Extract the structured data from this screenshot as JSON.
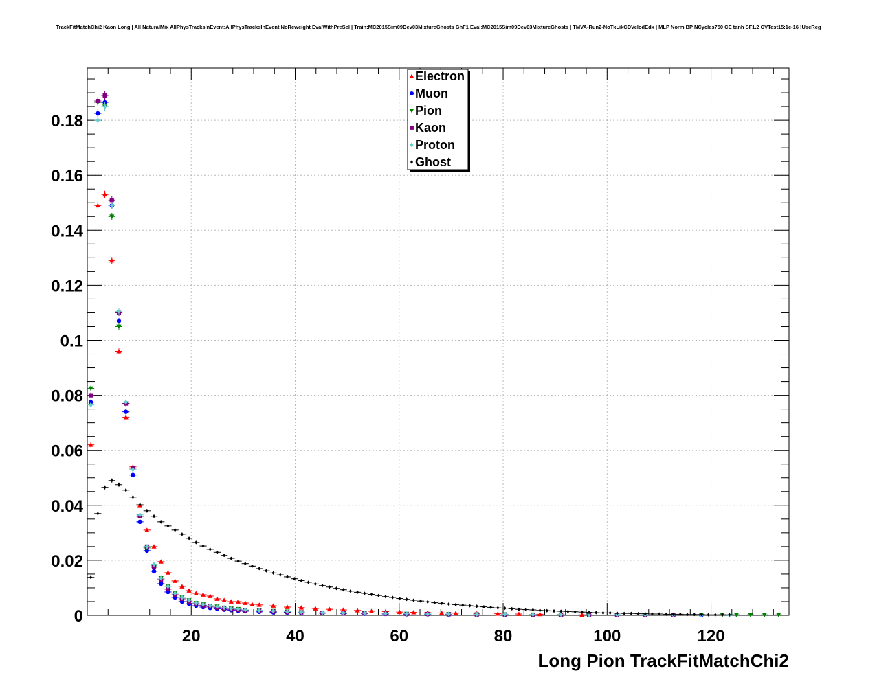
{
  "chart_data": {
    "type": "scatter",
    "title": "TrackFitMatchChi2 Kaon Long | All NaturalMix AllPhysTracksInEvent:AllPhysTracksInEvent NoReweight EvalWithPreSel | Train:MC2015Sim09Dev03MixtureGhosts GhF1 Eval:MC2015Sim09Dev03MixtureGhosts | TMVA-Run2-NoTkLikCDVelodEdx | MLP Norm BP NCycles750 CE tanh SF1.2 CVTest15:1e-16 !UseReg",
    "xlabel": "Long Pion TrackFitMatchChi2",
    "ylabel": "",
    "xlim": [
      0,
      135
    ],
    "ylim": [
      0,
      0.199
    ],
    "grid": true,
    "legend_position": "top-center",
    "xticks": [
      20,
      40,
      60,
      80,
      100,
      120
    ],
    "xtick_labels": [
      "20",
      "40",
      "60",
      "80",
      "100",
      "120"
    ],
    "yticks": [
      0,
      0.02,
      0.04,
      0.06,
      0.08,
      0.1,
      0.12,
      0.14,
      0.16,
      0.18
    ],
    "ytick_labels": [
      "0",
      "0.02",
      "0.04",
      "0.06",
      "0.08",
      "0.1",
      "0.12",
      "0.14",
      "0.16",
      "0.18"
    ],
    "bin_width": 1.35,
    "series": [
      {
        "name": "Electron",
        "color": "#ff0000",
        "marker": "triangle-up",
        "x": [
          0.68,
          2.03,
          3.38,
          4.73,
          6.08,
          7.43,
          8.78,
          10.13,
          11.48,
          12.83,
          14.18,
          15.53,
          16.88,
          18.23,
          19.58,
          20.93,
          22.28,
          23.63,
          24.98,
          26.33,
          27.68,
          29.03,
          30.38,
          31.73,
          33.08,
          35.78,
          38.48,
          41.18,
          43.88,
          46.58,
          49.28,
          51.98,
          54.68,
          57.38,
          60.08,
          62.78,
          65.48,
          68.18,
          70.88,
          74.93,
          78.98,
          83.03,
          87.08,
          91.13,
          95.18
        ],
        "y": [
          0.062,
          0.149,
          0.153,
          0.129,
          0.096,
          0.072,
          0.054,
          0.04,
          0.031,
          0.025,
          0.0195,
          0.0155,
          0.0125,
          0.0105,
          0.009,
          0.008,
          0.0075,
          0.007,
          0.006,
          0.0055,
          0.005,
          0.005,
          0.0045,
          0.004,
          0.0038,
          0.0035,
          0.003,
          0.0028,
          0.0025,
          0.0022,
          0.002,
          0.0018,
          0.0015,
          0.0014,
          0.0012,
          0.0011,
          0.001,
          0.0009,
          0.0008,
          0.0007,
          0.0006,
          0.0005,
          0.0004,
          0.0003,
          0.0002
        ]
      },
      {
        "name": "Muon",
        "color": "#0000ff",
        "marker": "circle",
        "x": [
          0.68,
          2.03,
          3.38,
          4.73,
          6.08,
          7.43,
          8.78,
          10.13,
          11.48,
          12.83,
          14.18,
          15.53,
          16.88,
          18.23,
          19.58,
          20.93,
          22.28,
          23.63,
          24.98,
          26.33,
          27.68,
          29.03,
          30.38,
          33.08,
          35.78,
          38.48,
          41.18,
          45.23,
          49.28,
          53.33,
          57.38,
          61.43,
          65.48,
          69.53,
          74.93,
          80.33,
          85.73,
          91.13,
          96.53,
          101.93,
          107.33,
          112.73,
          118.13
        ],
        "y": [
          0.0775,
          0.1825,
          0.1865,
          0.149,
          0.107,
          0.074,
          0.051,
          0.034,
          0.0235,
          0.016,
          0.0115,
          0.0085,
          0.0065,
          0.005,
          0.0042,
          0.0035,
          0.003,
          0.0027,
          0.0024,
          0.0021,
          0.0019,
          0.0017,
          0.0015,
          0.0013,
          0.0011,
          0.001,
          0.0009,
          0.0008,
          0.0007,
          0.0006,
          0.0005,
          0.0004,
          0.0004,
          0.0003,
          0.0003,
          0.0002,
          0.0002,
          0.0002,
          0.0001,
          0.0001,
          0.0001,
          0.0001,
          0.0001
        ]
      },
      {
        "name": "Pion",
        "color": "#008000",
        "marker": "triangle-down",
        "x": [
          0.68,
          2.03,
          3.38,
          4.73,
          6.08,
          7.43,
          8.78,
          10.13,
          11.48,
          12.83,
          14.18,
          15.53,
          16.88,
          18.23,
          19.58,
          20.93,
          22.28,
          23.63,
          24.98,
          26.33,
          27.68,
          29.03,
          30.38,
          33.08,
          35.78,
          38.48,
          41.18,
          45.23,
          49.28,
          53.33,
          57.38,
          61.43,
          65.48,
          69.53,
          74.93,
          80.33,
          85.73,
          91.13,
          96.53,
          101.93,
          107.33,
          112.73,
          118.13,
          122.18,
          124.88,
          127.58,
          130.28,
          132.98
        ],
        "y": [
          0.0825,
          0.1865,
          0.185,
          0.145,
          0.105,
          0.077,
          0.0535,
          0.036,
          0.0245,
          0.018,
          0.0135,
          0.0105,
          0.008,
          0.0065,
          0.0055,
          0.0045,
          0.004,
          0.0035,
          0.0032,
          0.0028,
          0.0025,
          0.0023,
          0.002,
          0.0018,
          0.0016,
          0.0014,
          0.0012,
          0.001,
          0.0009,
          0.0008,
          0.0007,
          0.0006,
          0.0005,
          0.0005,
          0.0004,
          0.0004,
          0.0003,
          0.0003,
          0.0002,
          0.0002,
          0.0002,
          0.0002,
          0.0002,
          0.0002,
          0.0002,
          0.0002,
          0.0002,
          0.0002
        ]
      },
      {
        "name": "Kaon",
        "color": "#800080",
        "marker": "square",
        "x": [
          0.68,
          2.03,
          3.38,
          4.73,
          6.08,
          7.43,
          8.78,
          10.13,
          11.48,
          12.83,
          14.18,
          15.53,
          16.88,
          18.23,
          19.58,
          20.93,
          22.28,
          23.63,
          24.98,
          26.33,
          27.68,
          29.03,
          30.38,
          33.08,
          35.78,
          38.48,
          41.18,
          45.23,
          49.28,
          53.33,
          57.38,
          61.43,
          65.48,
          69.53,
          74.93,
          80.33,
          85.73,
          91.13,
          96.53,
          101.93,
          107.33,
          112.73
        ],
        "y": [
          0.08,
          0.187,
          0.189,
          0.151,
          0.11,
          0.077,
          0.0535,
          0.036,
          0.025,
          0.0175,
          0.013,
          0.0095,
          0.0075,
          0.006,
          0.005,
          0.0042,
          0.0036,
          0.0032,
          0.0028,
          0.0025,
          0.0022,
          0.002,
          0.0018,
          0.0016,
          0.0014,
          0.0012,
          0.0011,
          0.0009,
          0.0008,
          0.0007,
          0.0006,
          0.0005,
          0.0005,
          0.0004,
          0.0003,
          0.0003,
          0.0002,
          0.0002,
          0.0002,
          0.0001,
          0.0001,
          0.0001
        ]
      },
      {
        "name": "Proton",
        "color": "#66cccc",
        "marker": "diamond",
        "x": [
          0.68,
          2.03,
          3.38,
          4.73,
          6.08,
          7.43,
          8.78,
          10.13,
          11.48,
          12.83,
          14.18,
          15.53,
          16.88,
          18.23,
          19.58,
          20.93,
          22.28,
          23.63,
          24.98,
          26.33,
          27.68,
          29.03,
          30.38,
          33.08,
          35.78,
          38.48,
          41.18,
          45.23,
          49.28,
          53.33,
          57.38,
          61.43,
          65.48,
          69.53,
          74.93,
          80.33,
          85.73,
          91.13,
          96.53,
          101.93,
          107.33,
          112.73,
          118.13,
          123.53
        ],
        "y": [
          0.0765,
          0.18,
          0.185,
          0.149,
          0.1105,
          0.0775,
          0.053,
          0.0365,
          0.025,
          0.0185,
          0.0135,
          0.0105,
          0.008,
          0.0065,
          0.0055,
          0.0045,
          0.004,
          0.0035,
          0.0032,
          0.0028,
          0.0025,
          0.0023,
          0.002,
          0.0018,
          0.0016,
          0.0014,
          0.0012,
          0.001,
          0.0009,
          0.0008,
          0.0007,
          0.0006,
          0.0005,
          0.0005,
          0.0004,
          0.0004,
          0.0003,
          0.0003,
          0.0002,
          0.0002,
          0.0002,
          0.0002,
          0.0001,
          0.0001
        ]
      },
      {
        "name": "Ghost",
        "color": "#000000",
        "marker": "diamond",
        "x": [
          0.68,
          2.03,
          3.38,
          4.73,
          6.08,
          7.43,
          8.78,
          10.13,
          11.48,
          12.83,
          14.18,
          15.53,
          16.88,
          18.23,
          19.58,
          20.93,
          22.28,
          23.63,
          24.98,
          26.33,
          27.68,
          29.03,
          30.38,
          31.73,
          33.08,
          34.43,
          35.78,
          37.13,
          38.48,
          39.83,
          41.18,
          42.53,
          43.88,
          45.23,
          46.58,
          47.93,
          49.28,
          50.63,
          51.98,
          53.33,
          54.68,
          56.03,
          57.38,
          58.73,
          60.08,
          61.43,
          62.78,
          64.13,
          65.48,
          66.83,
          68.18,
          69.53,
          70.88,
          72.23,
          73.58,
          74.93,
          76.28,
          77.63,
          78.98,
          80.33,
          81.68,
          83.03,
          84.38,
          85.73,
          87.08,
          88.43,
          89.78,
          91.13,
          92.48,
          93.83,
          95.18,
          96.53,
          97.88,
          99.23,
          100.58,
          101.93,
          103.28,
          104.63,
          105.98,
          107.33,
          108.68,
          110.03,
          111.38,
          112.73,
          114.08,
          115.43,
          116.78,
          118.13,
          119.48,
          120.83,
          122.18,
          123.53
        ],
        "y": [
          0.0138,
          0.037,
          0.0465,
          0.049,
          0.0475,
          0.0455,
          0.043,
          0.0402,
          0.038,
          0.036,
          0.034,
          0.0325,
          0.031,
          0.0295,
          0.028,
          0.0265,
          0.0252,
          0.024,
          0.0229,
          0.0218,
          0.0207,
          0.0197,
          0.0188,
          0.0179,
          0.017,
          0.0162,
          0.0154,
          0.0147,
          0.014,
          0.0133,
          0.0126,
          0.012,
          0.0114,
          0.0108,
          0.0103,
          0.0098,
          0.0093,
          0.0088,
          0.0084,
          0.008,
          0.0076,
          0.0072,
          0.0068,
          0.0065,
          0.0061,
          0.0058,
          0.0055,
          0.0052,
          0.0049,
          0.0046,
          0.0044,
          0.0041,
          0.0039,
          0.0037,
          0.0035,
          0.0033,
          0.0031,
          0.0029,
          0.0027,
          0.0026,
          0.0024,
          0.0022,
          0.0021,
          0.002,
          0.0018,
          0.0017,
          0.0016,
          0.0015,
          0.0014,
          0.0013,
          0.0012,
          0.0011,
          0.001,
          0.0009,
          0.0009,
          0.0008,
          0.0007,
          0.0007,
          0.0006,
          0.0006,
          0.0005,
          0.0005,
          0.0004,
          0.0004,
          0.0004,
          0.0003,
          0.0003,
          0.0003,
          0.0002,
          0.0002,
          0.0002,
          0.0002
        ]
      }
    ]
  }
}
